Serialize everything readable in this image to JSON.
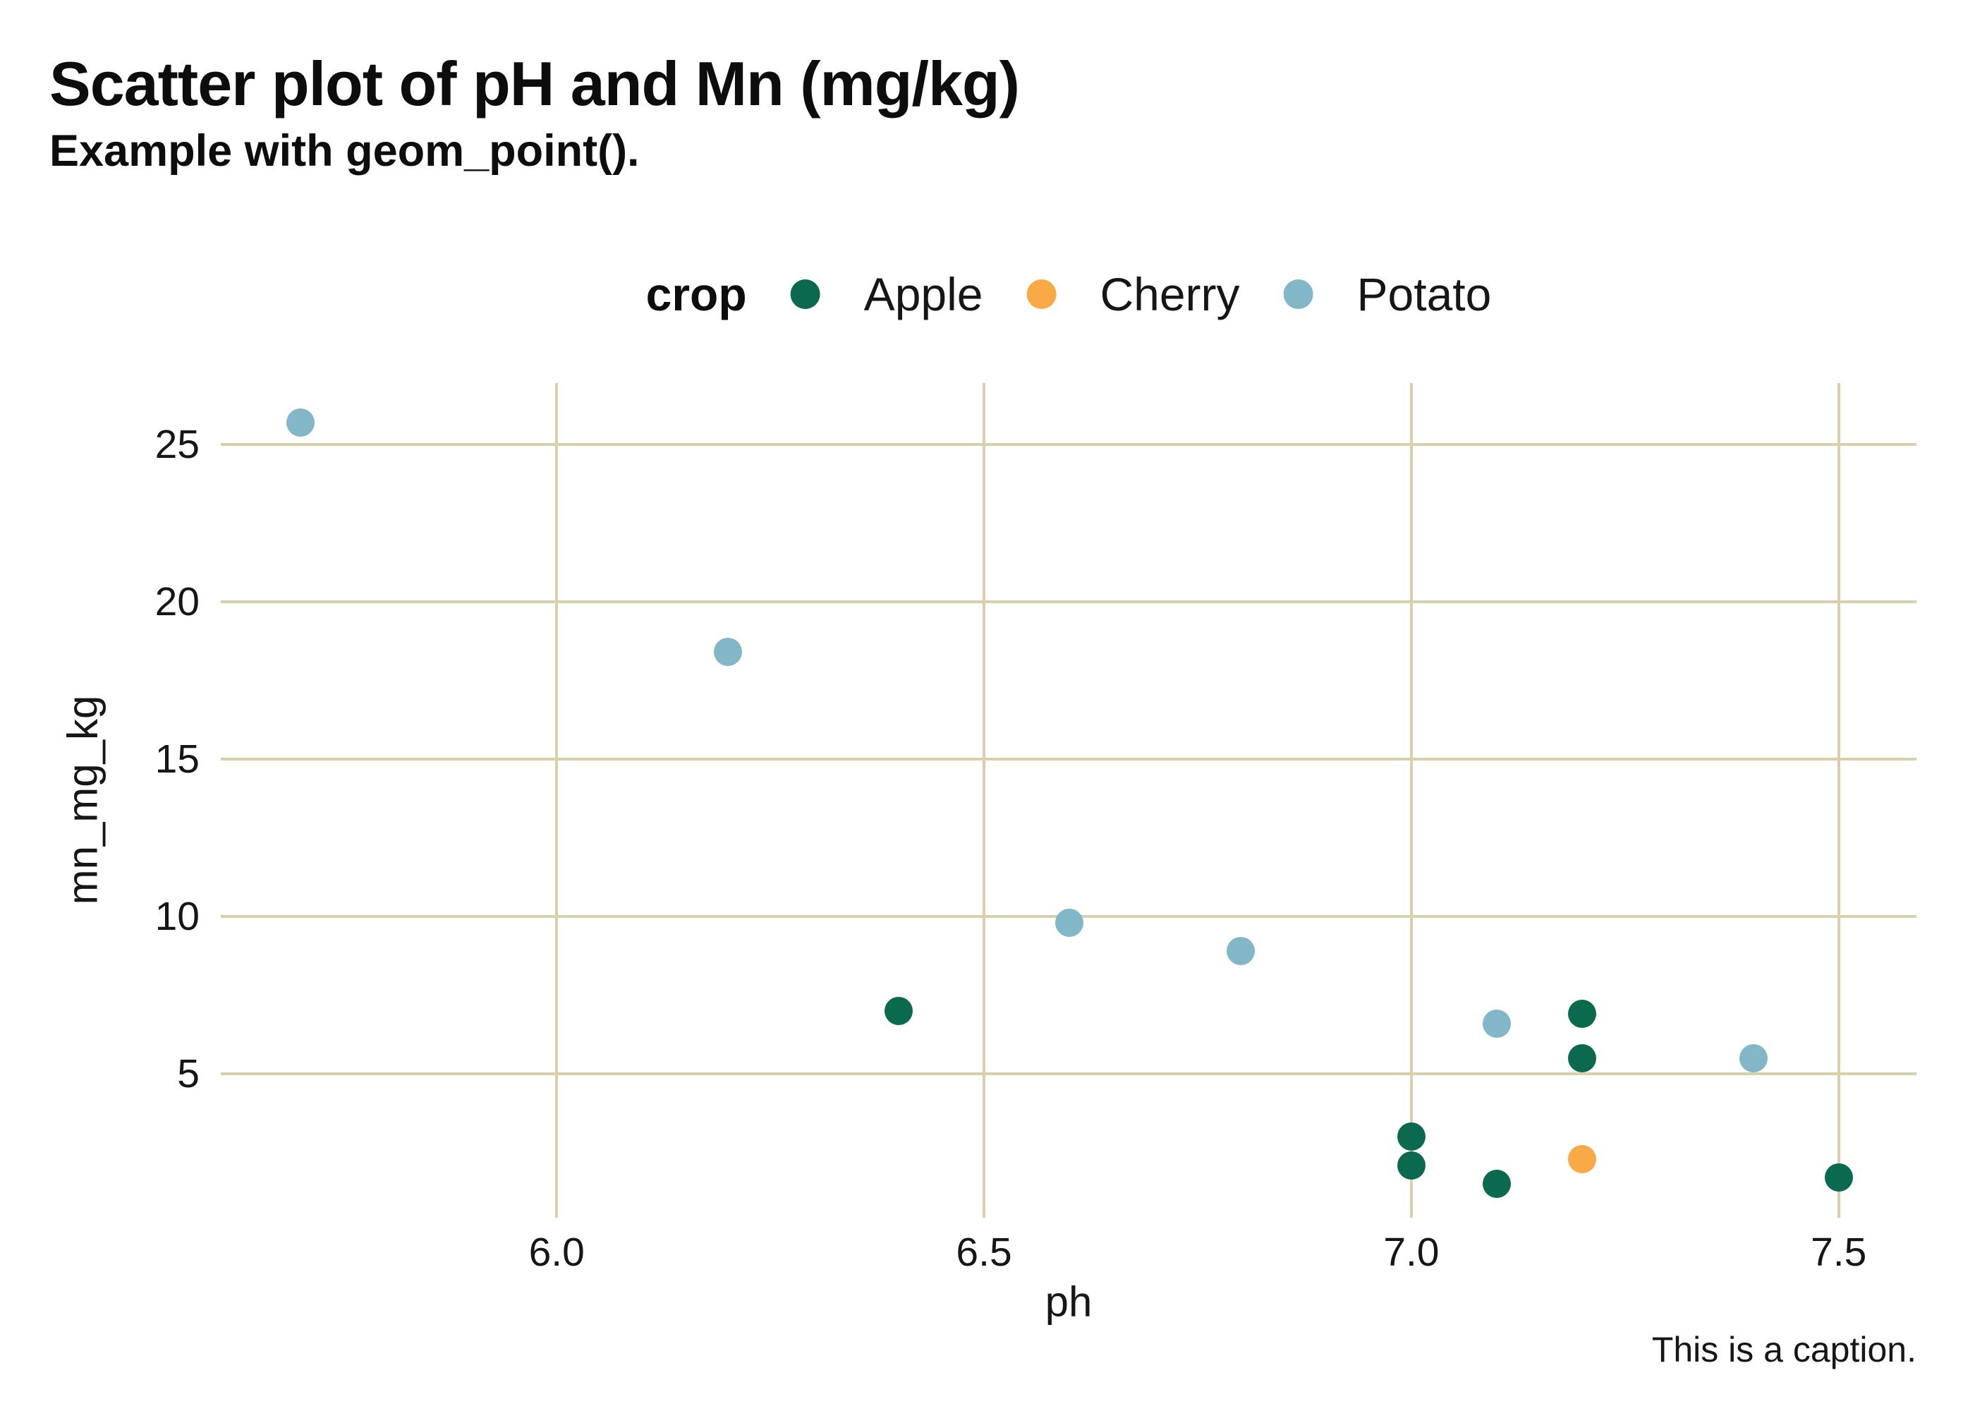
{
  "title": "Scatter plot of pH and Mn (mg/kg)",
  "subtitle": "Example with geom_point().",
  "caption": "This is a caption.",
  "legend": {
    "title": "crop",
    "position": "top-center"
  },
  "colors": {
    "apple": "#0b6a4e",
    "cherry": "#f9aa47",
    "potato": "#81b7c7",
    "gridline": "#d7d0ab",
    "background": "#ffffff",
    "text": "#161616"
  },
  "chart_data": {
    "type": "scatter",
    "title": "Scatter plot of pH and Mn (mg/kg)",
    "subtitle": "Example with geom_point().",
    "caption": "This is a caption.",
    "xlabel": "ph",
    "ylabel": "mn_mg_kg",
    "legend_title": "crop",
    "legend_position": "top",
    "grid": "major-only",
    "xlim": [
      5.607,
      7.591
    ],
    "ylim": [
      0.43,
      26.95
    ],
    "x_ticks": [
      6.0,
      6.5,
      7.0,
      7.5
    ],
    "x_tick_labels": [
      "6.0",
      "6.5",
      "7.0",
      "7.5"
    ],
    "y_ticks": [
      5,
      10,
      15,
      20,
      25
    ],
    "y_tick_labels": [
      "5",
      "10",
      "15",
      "20",
      "25"
    ],
    "series": [
      {
        "name": "Apple",
        "color": "#0b6a4e",
        "points": [
          [
            6.4,
            7.0
          ],
          [
            7.0,
            3.0
          ],
          [
            7.0,
            2.1
          ],
          [
            7.1,
            1.5
          ],
          [
            7.2,
            6.9
          ],
          [
            7.2,
            5.5
          ],
          [
            7.5,
            1.7
          ]
        ]
      },
      {
        "name": "Cherry",
        "color": "#f9aa47",
        "points": [
          [
            7.2,
            2.3
          ]
        ]
      },
      {
        "name": "Potato",
        "color": "#81b7c7",
        "points": [
          [
            5.7,
            25.7
          ],
          [
            6.2,
            18.4
          ],
          [
            6.6,
            9.8
          ],
          [
            6.8,
            8.9
          ],
          [
            7.1,
            6.6
          ],
          [
            7.4,
            5.5
          ]
        ]
      }
    ]
  }
}
